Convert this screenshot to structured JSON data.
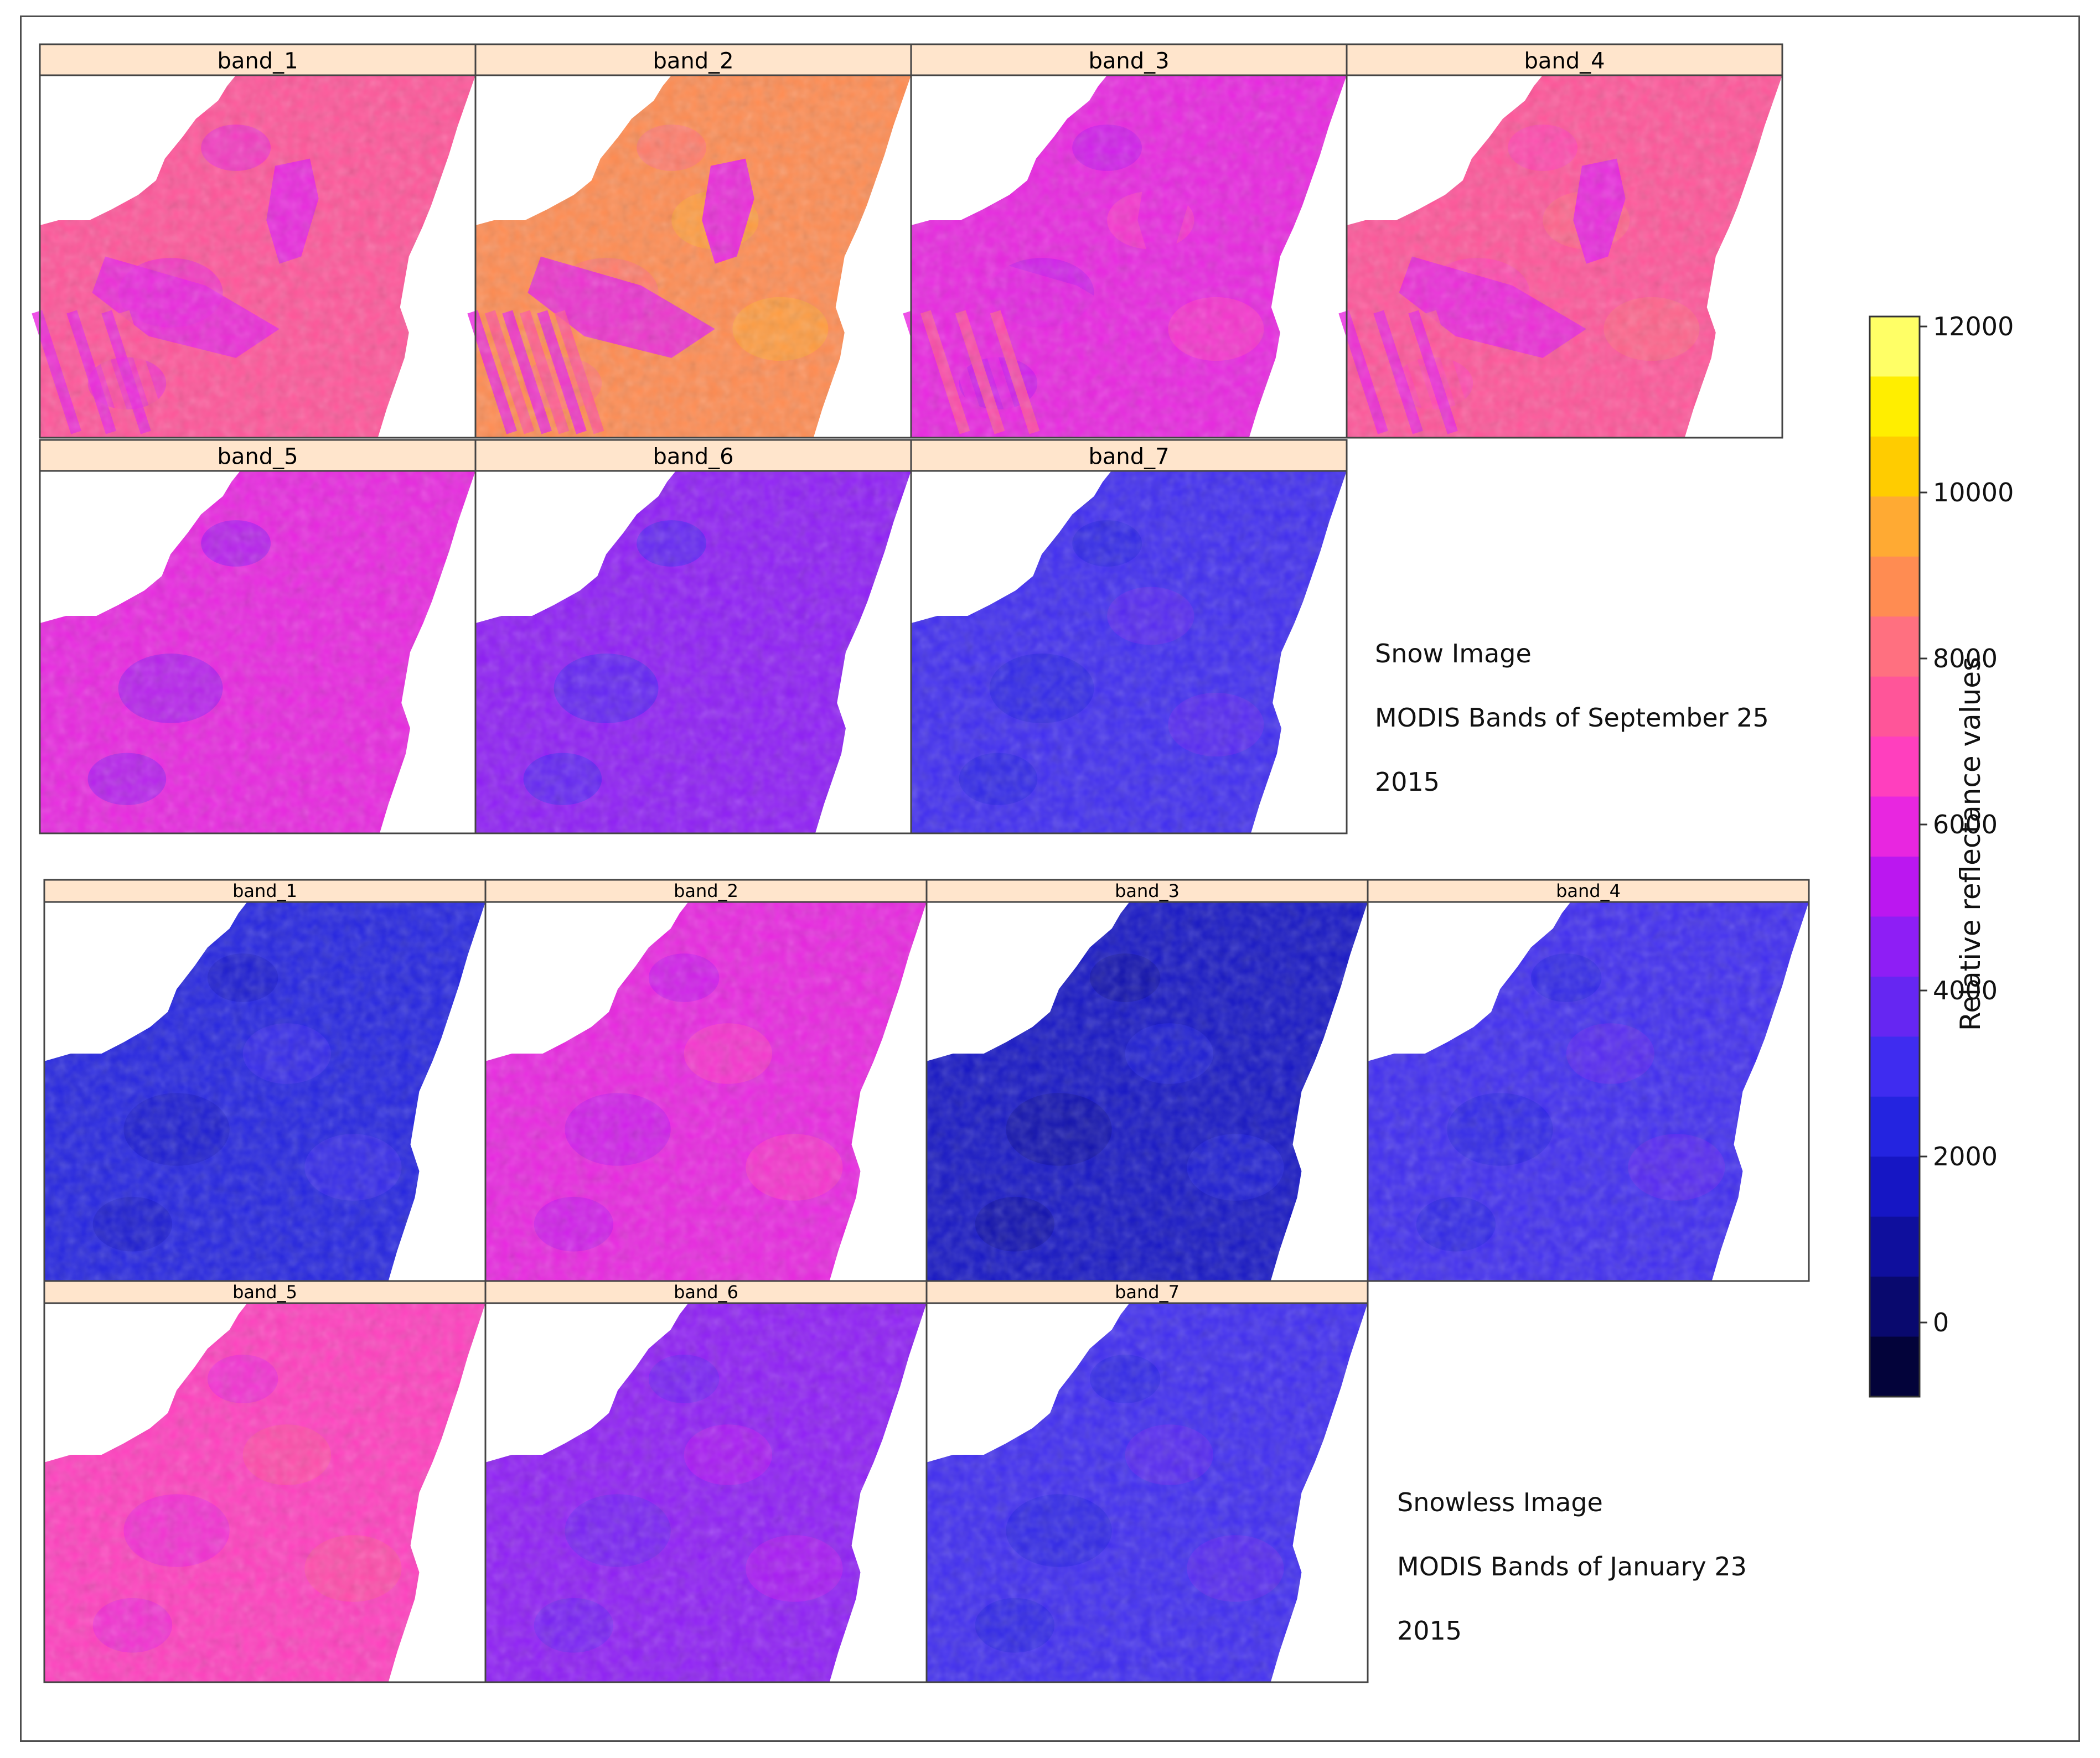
{
  "groups": [
    {
      "id": "snow",
      "caption": [
        "Snow Image",
        "MODIS Bands of September 25",
        "2015"
      ],
      "panels": [
        {
          "label": "band_1",
          "level": 0.62,
          "snow": true
        },
        {
          "label": "band_2",
          "level": 0.78,
          "snow": true
        },
        {
          "label": "band_3",
          "level": 0.55,
          "snow": true
        },
        {
          "label": "band_4",
          "level": 0.66,
          "snow": true
        },
        {
          "label": "band_5",
          "level": 0.5,
          "snow": false
        },
        {
          "label": "band_6",
          "level": 0.4,
          "snow": false
        },
        {
          "label": "band_7",
          "level": 0.3,
          "snow": false
        }
      ]
    },
    {
      "id": "snowless",
      "caption": [
        "Snowless Image",
        "MODIS Bands of January 23",
        "2015"
      ],
      "panels": [
        {
          "label": "band_1",
          "level": 0.24,
          "snow": false
        },
        {
          "label": "band_2",
          "level": 0.55,
          "snow": false
        },
        {
          "label": "band_3",
          "level": 0.2,
          "snow": false
        },
        {
          "label": "band_4",
          "level": 0.3,
          "snow": false
        },
        {
          "label": "band_5",
          "level": 0.6,
          "snow": false
        },
        {
          "label": "band_6",
          "level": 0.42,
          "snow": false
        },
        {
          "label": "band_7",
          "level": 0.3,
          "snow": false
        }
      ]
    }
  ],
  "colorkey": {
    "title": "Relative reflectance values",
    "ticks": [
      "12000",
      "10000",
      "8000",
      "6000",
      "4000",
      "2000",
      "0"
    ],
    "colors": [
      "#ffff66",
      "#ffee00",
      "#ffcc00",
      "#ffaa33",
      "#ff8c52",
      "#ff7080",
      "#ff5599",
      "#ff3fbe",
      "#e826e0",
      "#bb17f0",
      "#8e1ef5",
      "#6626f2",
      "#3f2cf0",
      "#2424e0",
      "#1616c4",
      "#0f0f9d",
      "#09096e",
      "#03033a"
    ]
  },
  "colors": {
    "strip_fill": "#ffe5cc",
    "water": "#ffffff",
    "panel_border": "#444444"
  }
}
